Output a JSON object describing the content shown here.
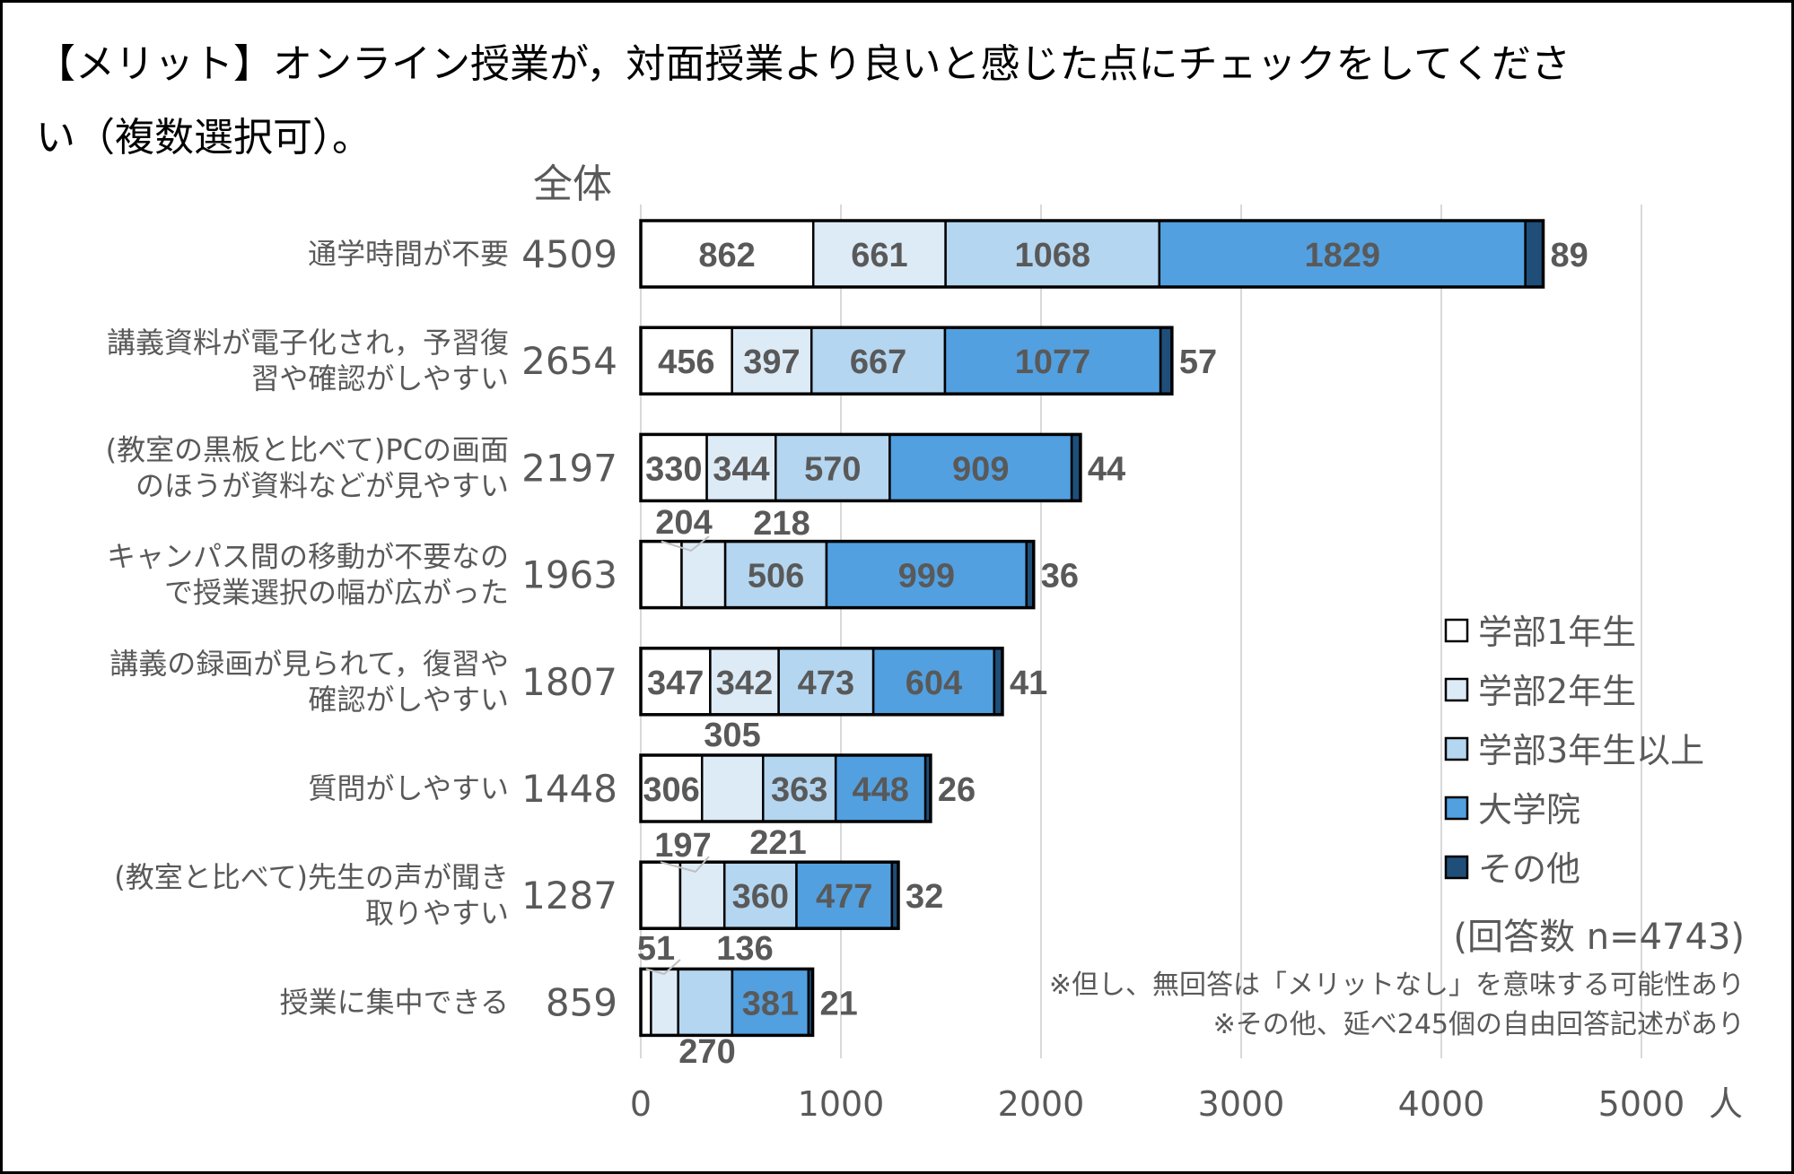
{
  "chart_data": {
    "type": "bar",
    "orientation": "horizontal",
    "stacked": true,
    "title": "【メリット】オンライン授業が，対面授業より良いと感じた点にチェックをしてください（複数選択可）。",
    "title_lines": [
      "【メリット】オンライン授業が，対面授業より良いと感じた点にチェックをしてくださ",
      "い（複数選択可）。"
    ],
    "subtitle": "全体",
    "xlabel": "人",
    "xlim": [
      0,
      5000
    ],
    "xticks": [
      "0",
      "1000",
      "2000",
      "3000",
      "4000",
      "5000"
    ],
    "grid": true,
    "legend_position": "right",
    "categories": [
      [
        "通学時間が不要"
      ],
      [
        "講義資料が電子化され，予習復",
        "習や確認がしやすい"
      ],
      [
        "(教室の黒板と比べて)PCの画面",
        "のほうが資料などが見やすい"
      ],
      [
        "キャンパス間の移動が不要なの",
        "で授業選択の幅が広がった"
      ],
      [
        "講義の録画が見られて，復習や",
        "確認がしやすい"
      ],
      [
        "質問がしやすい"
      ],
      [
        "(教室と比べて)先生の声が聞き",
        "取りやすい"
      ],
      [
        "授業に集中できる"
      ]
    ],
    "totals": [
      "4509",
      "2654",
      "2197",
      "1963",
      "1807",
      "1448",
      "1287",
      "859"
    ],
    "series": [
      {
        "name": "学部1年生",
        "color": "#ffffff",
        "values": [
          862,
          456,
          330,
          204,
          347,
          306,
          197,
          51
        ]
      },
      {
        "name": "学部2年生",
        "color": "#ddebf7",
        "values": [
          661,
          397,
          344,
          218,
          342,
          305,
          221,
          136
        ]
      },
      {
        "name": "学部3年生以上",
        "color": "#b4d6f0",
        "values": [
          1068,
          667,
          570,
          506,
          473,
          363,
          360,
          270
        ]
      },
      {
        "name": "大学院",
        "color": "#52a0e0",
        "values": [
          1829,
          1077,
          909,
          999,
          604,
          448,
          477,
          381
        ]
      },
      {
        "name": "その他",
        "color": "#1f4e79",
        "values": [
          89,
          57,
          44,
          36,
          41,
          26,
          32,
          21
        ]
      }
    ],
    "annotations": {
      "n": "(回答数 n=4743)",
      "note1": "※但し、無回答は「メリットなし」を意味する可能性あり",
      "note2": "※その他、延べ245個の自由回答記述があり"
    }
  }
}
